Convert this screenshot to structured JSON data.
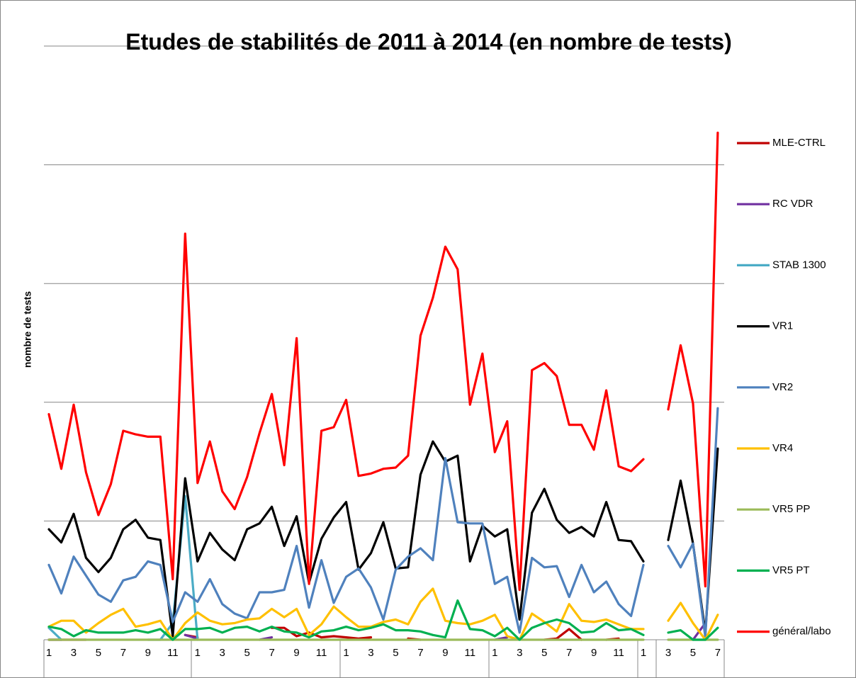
{
  "chart_data": {
    "type": "line",
    "title": "Etudes de stabilités de 2011 à 2014 (en nombre de tests)",
    "y_label": "nombre de tests",
    "categories": [
      "1",
      null,
      "3",
      null,
      "5",
      null,
      "7",
      null,
      "9",
      null,
      "11",
      null,
      "1",
      null,
      "3",
      null,
      "5",
      null,
      "7",
      null,
      "9",
      null,
      "11",
      null,
      "1",
      null,
      "3",
      null,
      "5",
      null,
      "7",
      null,
      "9",
      null,
      "11",
      null,
      "1",
      null,
      "3",
      null,
      "5",
      null,
      "7",
      null,
      "9",
      null,
      "11",
      null,
      "1",
      null,
      "3",
      null,
      "5",
      null,
      "7"
    ],
    "ylim": [
      0,
      500
    ],
    "yticks": [
      0,
      100,
      200,
      300,
      400,
      500
    ],
    "grid": true,
    "legend": "right",
    "series": [
      {
        "name": "MLE-CTRL",
        "color": "#c00000",
        "values": [
          0,
          0,
          0,
          0,
          null,
          null,
          null,
          null,
          null,
          null,
          null,
          4,
          2,
          null,
          null,
          null,
          null,
          null,
          10,
          10,
          3,
          6,
          2,
          3,
          2,
          1,
          2,
          null,
          null,
          1,
          0,
          null,
          null,
          null,
          null,
          null,
          null,
          null,
          null,
          null,
          0,
          1,
          9,
          0,
          null,
          0,
          1,
          null,
          null,
          null,
          null,
          null,
          null,
          0,
          null
        ]
      },
      {
        "name": "RC VDR",
        "color": "#7030a0",
        "values": [
          0,
          0,
          null,
          null,
          null,
          null,
          null,
          null,
          null,
          null,
          null,
          4,
          1,
          null,
          null,
          null,
          null,
          0,
          2,
          null,
          null,
          null,
          null,
          null,
          null,
          null,
          null,
          null,
          null,
          null,
          null,
          null,
          null,
          null,
          null,
          null,
          0,
          2,
          null,
          null,
          null,
          null,
          null,
          null,
          null,
          null,
          null,
          null,
          null,
          null,
          null,
          null,
          0,
          14,
          null
        ]
      },
      {
        "name": "STAB 1300",
        "color": "#4bacc6",
        "values": [
          10,
          0,
          null,
          null,
          null,
          null,
          null,
          null,
          0,
          0,
          14,
          121,
          0,
          null,
          null,
          null,
          null,
          null,
          null,
          null,
          null,
          null,
          null,
          null,
          null,
          null,
          null,
          null,
          null,
          null,
          null,
          null,
          null,
          null,
          null,
          null,
          null,
          null,
          null,
          null,
          null,
          null,
          null,
          null,
          null,
          null,
          null,
          null,
          null,
          null,
          null,
          null,
          null,
          null,
          null
        ]
      },
      {
        "name": "VR1",
        "color": "#000000",
        "values": [
          93,
          82,
          106,
          69,
          57,
          69,
          93,
          101,
          86,
          84,
          3,
          136,
          66,
          90,
          76,
          67,
          93,
          98,
          112,
          79,
          104,
          48,
          85,
          103,
          116,
          59,
          73,
          99,
          60,
          61,
          139,
          167,
          150,
          155,
          66,
          96,
          87,
          93,
          17,
          107,
          127,
          101,
          90,
          95,
          87,
          116,
          84,
          83,
          66,
          null,
          84,
          134,
          81,
          6,
          161
        ]
      },
      {
        "name": "VR2",
        "color": "#4f81bd",
        "values": [
          63,
          39,
          70,
          54,
          38,
          32,
          50,
          53,
          66,
          63,
          15,
          40,
          32,
          51,
          30,
          22,
          18,
          40,
          40,
          42,
          79,
          27,
          67,
          31,
          53,
          60,
          44,
          17,
          59,
          70,
          77,
          67,
          153,
          99,
          98,
          98,
          47,
          53,
          6,
          69,
          61,
          62,
          36,
          63,
          40,
          49,
          30,
          20,
          63,
          null,
          79,
          61,
          81,
          2,
          195
        ]
      },
      {
        "name": "VR4",
        "color": "#ffc000",
        "values": [
          11,
          16,
          16,
          6,
          14,
          21,
          26,
          11,
          13,
          16,
          0,
          14,
          23,
          16,
          13,
          14,
          17,
          18,
          26,
          19,
          26,
          4,
          13,
          28,
          19,
          11,
          11,
          15,
          17,
          13,
          32,
          43,
          16,
          14,
          13,
          16,
          21,
          3,
          0,
          22,
          15,
          7,
          30,
          16,
          15,
          17,
          13,
          9,
          9,
          null,
          16,
          31,
          14,
          0,
          21
        ]
      },
      {
        "name": "VR5 PP",
        "color": "#9bbb59",
        "values": [
          0,
          0,
          0,
          0,
          0,
          0,
          0,
          0,
          0,
          0,
          0,
          0,
          0,
          0,
          0,
          0,
          0,
          0,
          0,
          0,
          0,
          0,
          0,
          0,
          0,
          0,
          0,
          0,
          0,
          0,
          0,
          0,
          0,
          0,
          0,
          0,
          0,
          0,
          0,
          0,
          0,
          0,
          0,
          0,
          0,
          0,
          0,
          0,
          0,
          null,
          0,
          0,
          0,
          0,
          0
        ]
      },
      {
        "name": "VR5 PT",
        "color": "#00b050",
        "values": [
          11,
          9,
          3,
          8,
          6,
          6,
          6,
          8,
          6,
          9,
          0,
          9,
          9,
          10,
          6,
          10,
          11,
          7,
          11,
          7,
          6,
          2,
          7,
          8,
          11,
          8,
          10,
          13,
          8,
          8,
          7,
          4,
          2,
          33,
          9,
          8,
          3,
          10,
          0,
          10,
          14,
          17,
          14,
          6,
          7,
          14,
          8,
          9,
          4,
          null,
          6,
          8,
          0,
          0,
          10
        ]
      },
      {
        "name": "général/labo",
        "color": "#ff0000",
        "values": [
          190,
          144,
          198,
          141,
          105,
          131,
          176,
          173,
          171,
          171,
          51,
          342,
          132,
          167,
          125,
          110,
          137,
          174,
          207,
          147,
          254,
          47,
          176,
          179,
          202,
          138,
          140,
          144,
          145,
          155,
          256,
          288,
          331,
          312,
          198,
          241,
          158,
          184,
          42,
          227,
          233,
          222,
          181,
          181,
          160,
          210,
          146,
          142,
          152,
          null,
          194,
          248,
          199,
          45,
          427
        ]
      }
    ]
  }
}
